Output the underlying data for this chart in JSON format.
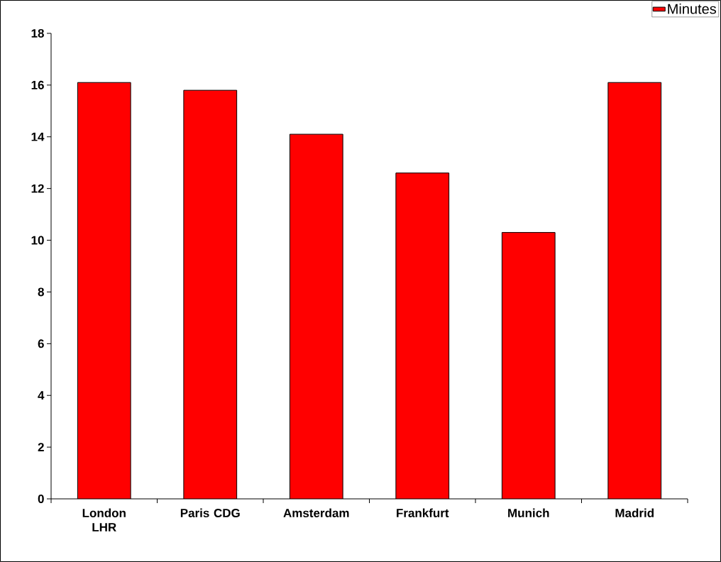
{
  "chart_data": {
    "type": "bar",
    "categories": [
      "London LHR",
      "Paris CDG",
      "Amsterdam",
      "Frankfurt",
      "Munich",
      "Madrid"
    ],
    "series": [
      {
        "name": "Minutes",
        "color": "#ff0000",
        "values": [
          16.1,
          15.8,
          14.1,
          12.6,
          10.3,
          16.1
        ]
      }
    ],
    "ylim": [
      0,
      18
    ],
    "yticks": [
      0,
      2,
      4,
      6,
      8,
      10,
      12,
      14,
      16,
      18
    ],
    "grid": false,
    "legend": "top right"
  }
}
